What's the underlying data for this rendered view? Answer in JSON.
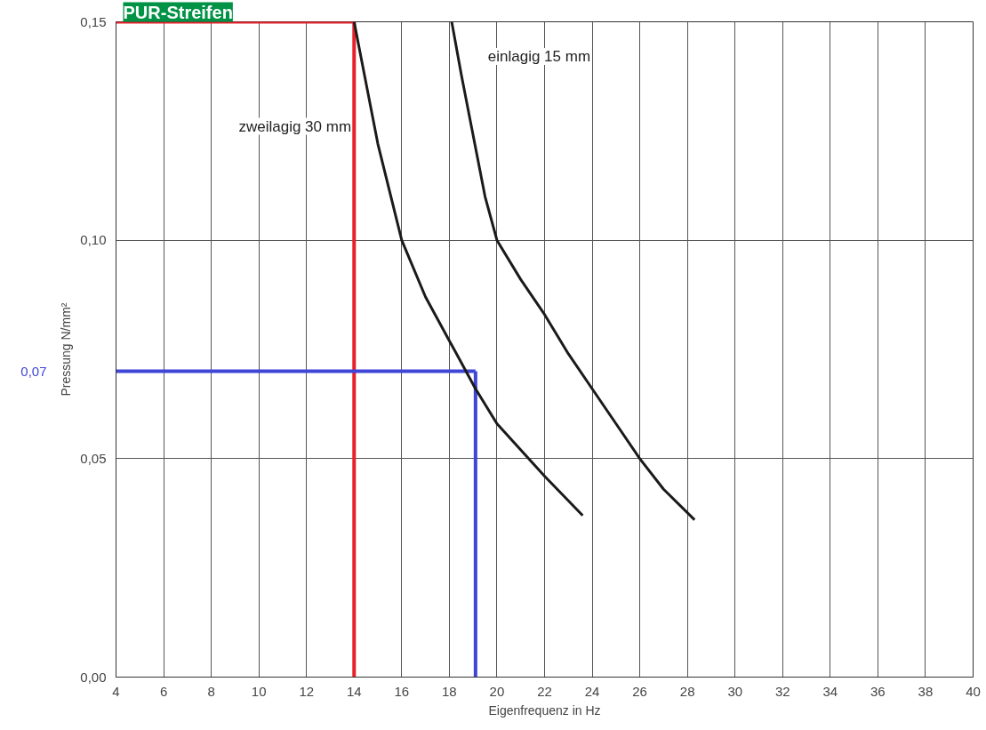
{
  "chart_data": {
    "type": "line",
    "title": "PUR-Streifen",
    "xlabel": "Eigenfrequenz in Hz",
    "ylabel": "Pressung N/mm²",
    "xlim": [
      4,
      40
    ],
    "xticks": [
      4,
      6,
      8,
      10,
      12,
      14,
      16,
      18,
      20,
      22,
      24,
      26,
      28,
      30,
      32,
      34,
      36,
      38,
      40
    ],
    "ylim": [
      0,
      0.15
    ],
    "yticks": [
      {
        "value": 0,
        "label": "0,00"
      },
      {
        "value": 0.05,
        "label": "0,05"
      },
      {
        "value": 0.1,
        "label": "0,10"
      },
      {
        "value": 0.15,
        "label": "0,15"
      }
    ],
    "grid": true,
    "marker": "none",
    "line_style": "solid",
    "series": [
      {
        "name": "zweilagig 30 mm",
        "color": "#1a1a1a",
        "x": [
          14,
          15,
          16,
          17,
          18,
          19.1,
          20,
          21,
          22,
          23.6
        ],
        "values": [
          0.15,
          0.122,
          0.1,
          0.087,
          0.077,
          0.066,
          0.058,
          0.052,
          0.046,
          0.037
        ]
      },
      {
        "name": "einlagig 15 mm",
        "color": "#1a1a1a",
        "x": [
          18.1,
          18.5,
          19,
          19.5,
          20,
          21,
          22,
          23,
          24,
          25,
          26,
          27,
          28.3
        ],
        "values": [
          0.15,
          0.138,
          0.124,
          0.11,
          0.1,
          0.091,
          0.083,
          0.074,
          0.066,
          0.058,
          0.05,
          0.043,
          0.036
        ]
      }
    ],
    "ref_lines": [
      {
        "axis": "x",
        "value": 14,
        "color": "#e8202a"
      },
      {
        "axis": "y",
        "value": 0.15,
        "color": "#e8202a"
      },
      {
        "axis": "x",
        "value": 19.1,
        "color": "#3f45d6"
      },
      {
        "axis": "y",
        "value": 0.07,
        "label": "0,07",
        "color": "#3f45d6"
      }
    ]
  }
}
